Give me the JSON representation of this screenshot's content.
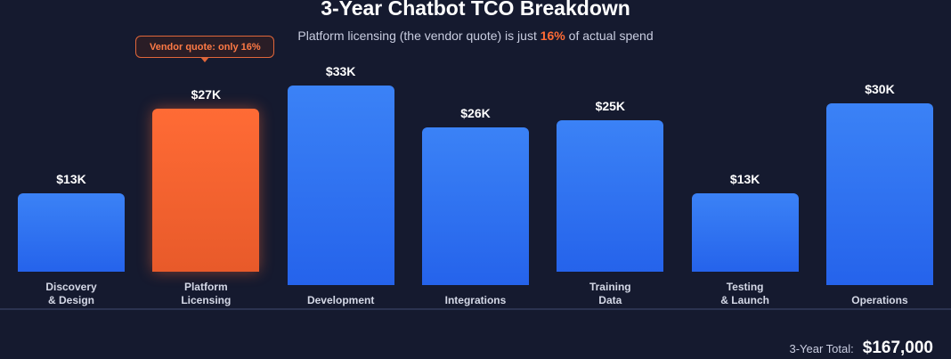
{
  "chart_data": {
    "type": "bar",
    "title": "3-Year Chatbot TCO Breakdown",
    "subtitle": {
      "before": "Platform licensing (the vendor quote) is just ",
      "highlight": "16%",
      "after": " of actual spend"
    },
    "categories": [
      "Discovery\n& Design",
      "Platform\nLicensing",
      "Development",
      "Integrations",
      "Training\nData",
      "Testing\n& Launch",
      "Operations"
    ],
    "values": [
      13,
      27,
      33,
      26,
      25,
      13,
      30
    ],
    "value_labels": [
      "$13K",
      "$27K",
      "$33K",
      "$26K",
      "$25K",
      "$13K",
      "$30K"
    ],
    "unit": "thousand USD",
    "highlight_index": 1,
    "annotation": "Vendor quote: only 16%",
    "grid": false,
    "colors": {
      "default": "#3b82f6",
      "highlight": "#ff6b35",
      "background": "#151a2f"
    }
  },
  "total": {
    "label": "3-Year Total:",
    "value": "$167,000"
  }
}
